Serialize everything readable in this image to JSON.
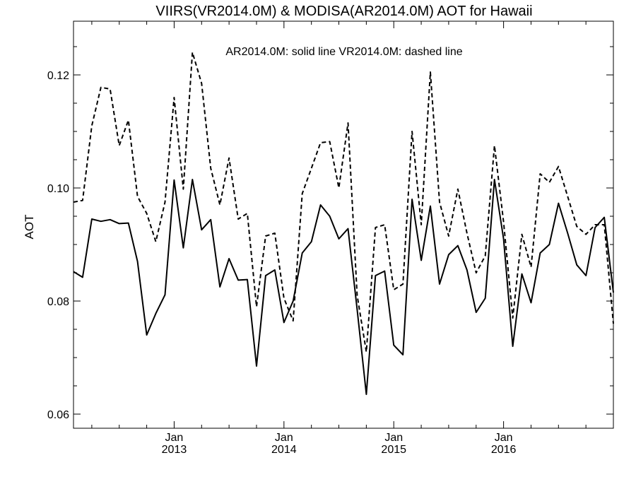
{
  "chart_data": {
    "type": "line",
    "title": "VIIRS(VR2014.0M) & MODISA(AR2014.0M)  AOT for Hawaii",
    "ylabel": "AOT",
    "xlabel": "",
    "annotation": "AR2014.0M: solid line   VR2014.0M: dashed line",
    "ylim": [
      0.0575,
      0.1295
    ],
    "yticks": [
      "0.06",
      "0.08",
      "0.10",
      "0.12"
    ],
    "xticks": [
      {
        "month": "Jan",
        "year": "2013",
        "date": "2013-01"
      },
      {
        "month": "Jan",
        "year": "2014",
        "date": "2014-01"
      },
      {
        "month": "Jan",
        "year": "2015",
        "date": "2015-01"
      },
      {
        "month": "Jan",
        "year": "2016",
        "date": "2016-01"
      }
    ],
    "grid": false,
    "x": [
      "2012-02",
      "2012-03",
      "2012-04",
      "2012-05",
      "2012-06",
      "2012-07",
      "2012-08",
      "2012-09",
      "2012-10",
      "2012-11",
      "2012-12",
      "2013-01",
      "2013-02",
      "2013-03",
      "2013-04",
      "2013-05",
      "2013-06",
      "2013-07",
      "2013-08",
      "2013-09",
      "2013-10",
      "2013-11",
      "2013-12",
      "2014-01",
      "2014-02",
      "2014-03",
      "2014-04",
      "2014-05",
      "2014-06",
      "2014-07",
      "2014-08",
      "2014-09",
      "2014-10",
      "2014-11",
      "2014-12",
      "2015-01",
      "2015-02",
      "2015-03",
      "2015-04",
      "2015-05",
      "2015-06",
      "2015-07",
      "2015-08",
      "2015-09",
      "2015-10",
      "2015-11",
      "2015-12",
      "2016-01",
      "2016-02",
      "2016-03",
      "2016-04",
      "2016-05",
      "2016-06",
      "2016-07",
      "2016-08",
      "2016-09",
      "2016-10",
      "2016-11",
      "2016-12",
      "2017-01"
    ],
    "series": [
      {
        "name": "AR2014.0M",
        "style": "solid",
        "color": "#000000",
        "values": [
          0.0852,
          0.0842,
          0.0945,
          0.0941,
          0.0944,
          0.0937,
          0.0938,
          0.087,
          0.074,
          0.0778,
          0.0811,
          0.1014,
          0.0894,
          0.1015,
          0.0926,
          0.0944,
          0.0825,
          0.0875,
          0.0837,
          0.0838,
          0.0685,
          0.0845,
          0.0855,
          0.0762,
          0.08,
          0.0885,
          0.0905,
          0.097,
          0.095,
          0.091,
          0.0928,
          0.0785,
          0.0635,
          0.0845,
          0.0853,
          0.0722,
          0.0705,
          0.098,
          0.0872,
          0.0968,
          0.083,
          0.0882,
          0.0898,
          0.0855,
          0.078,
          0.0805,
          0.1015,
          0.091,
          0.072,
          0.0848,
          0.0797,
          0.0885,
          0.09,
          0.0973,
          0.092,
          0.0864,
          0.0845,
          0.093,
          0.0948,
          0.0815
        ]
      },
      {
        "name": "VR2014.0M",
        "style": "dashed",
        "color": "#000000",
        "values": [
          0.0975,
          0.0978,
          0.111,
          0.1178,
          0.1175,
          0.1075,
          0.112,
          0.0985,
          0.0955,
          0.0905,
          0.0975,
          0.116,
          0.0998,
          0.124,
          0.1185,
          0.1035,
          0.097,
          0.1053,
          0.0945,
          0.0955,
          0.079,
          0.0915,
          0.092,
          0.0805,
          0.0765,
          0.099,
          0.1035,
          0.108,
          0.1082,
          0.1,
          0.1115,
          0.081,
          0.071,
          0.093,
          0.0935,
          0.082,
          0.083,
          0.11,
          0.0935,
          0.1205,
          0.0975,
          0.0915,
          0.0998,
          0.092,
          0.085,
          0.088,
          0.1075,
          0.094,
          0.077,
          0.0918,
          0.086,
          0.1025,
          0.101,
          0.1038,
          0.0985,
          0.0932,
          0.0918,
          0.0935,
          0.0935,
          0.076
        ]
      }
    ]
  }
}
